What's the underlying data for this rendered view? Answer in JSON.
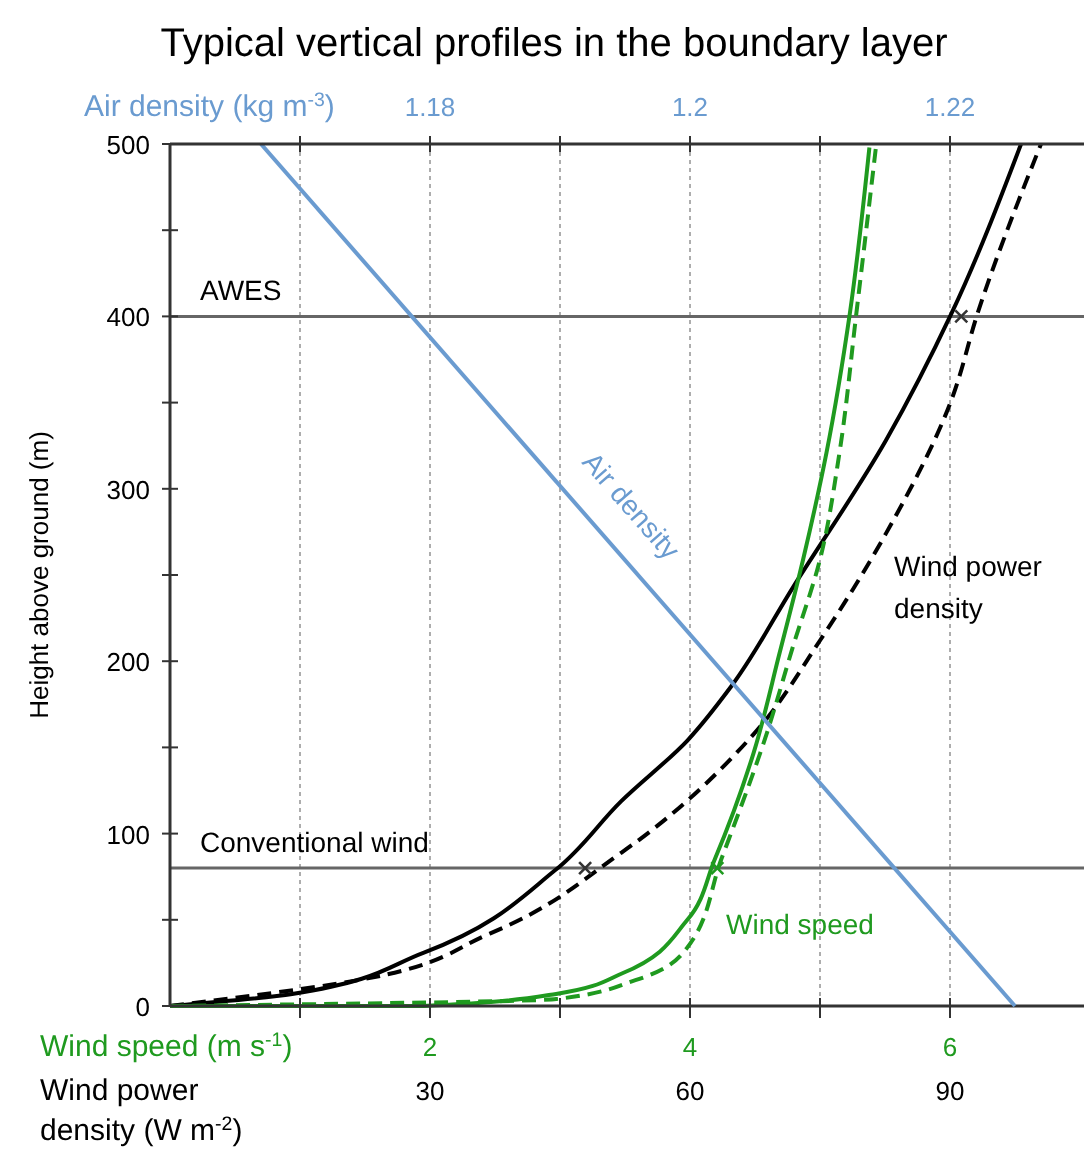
{
  "chart_data": [
    {
      "type": "line",
      "title": "Typical vertical profiles in the boundary layer",
      "xlabel": "Wind speed (m s$^{-1}$)",
      "x2label": "Wind power density (W m$^{-2}$)",
      "ylabel": "Height above ground (m)",
      "xlim": [
        0,
        7
      ],
      "xticks": [
        {
          "value": 1,
          "label": null
        },
        2,
        {
          "value": 3,
          "label": null
        },
        4,
        {
          "value": 5,
          "label": null
        },
        6
      ],
      "x2lim": [
        0,
        105
      ],
      "x2ticks": [
        30,
        60,
        90
      ],
      "ylim": [
        0,
        500
      ],
      "yticks": [
        0,
        {
          "value": 50,
          "label": null
        },
        100,
        {
          "value": 150,
          "label": null
        },
        200,
        {
          "value": 250,
          "label": null
        },
        300,
        {
          "value": 350,
          "label": null
        },
        400,
        {
          "value": 450,
          "label": null
        },
        500
      ],
      "grid": "x",
      "marker": "none",
      "ref_lines": [
        {
          "axis": "y",
          "value": 400,
          "label": "AWES",
          "color": "#666666"
        },
        {
          "axis": "y",
          "value": 80,
          "label": "Conventional wind",
          "color": "#666666"
        }
      ],
      "series": [
        {
          "name": "Wind power density",
          "color": "#000000",
          "axis": "x2",
          "line_style": "solid",
          "x": [
            0,
            14.1,
            29.3,
            44.5,
            52.1,
            59.7,
            64.7,
            71.9,
            82.6,
            90.2,
            98.2
          ],
          "values": [
            0,
            7,
            31,
            79,
            119,
            154,
            185,
            243,
            328,
            402,
            500
          ]
        },
        {
          "color": "#000000",
          "axis": "x2",
          "line_style": "dashed",
          "x": [
            0,
            21.7,
            36.9,
            52.1,
            67.4,
            75,
            82.6,
            90.2,
            93.2,
            100.5
          ],
          "values": [
            0,
            15,
            42,
            89,
            158,
            212,
            274,
            352,
            402,
            500
          ]
        },
        {
          "name": "Wind speed",
          "color": "#1f9a1f",
          "line_style": "solid",
          "x": [
            0,
            1.95,
            2.97,
            3.48,
            3.98,
            4.19,
            4.49,
            4.69,
            4.87,
            5.05,
            5.23,
            5.38
          ],
          "values": [
            0,
            0,
            7,
            19,
            50,
            85,
            147,
            205,
            259,
            321,
            402,
            498
          ]
        },
        {
          "color": "#1f9a1f",
          "line_style": "dashed",
          "x": [
            0,
            2.97,
            3.58,
            3.98,
            4.24,
            4.59,
            4.79,
            5.0,
            5.15,
            5.28,
            5.43
          ],
          "values": [
            0,
            4,
            15,
            34,
            85,
            158,
            208,
            259,
            321,
            402,
            498
          ]
        },
        {
          "type": "scatter",
          "color": "#333333",
          "axis": "x2",
          "marker": "cross",
          "x": [
            47.9,
            91.3
          ],
          "values": [
            80,
            400
          ]
        },
        {
          "type": "scatter",
          "color": "#1f9a1f",
          "marker": "cross",
          "x": [
            4.21
          ],
          "values": [
            80
          ]
        }
      ]
    },
    {
      "type": "line",
      "xlabel": "Air density (kg m$^{-3}$)",
      "xlim": [
        1.16,
        1.23
      ],
      "xticks": [
        {
          "value": 1.17,
          "label": null
        },
        1.18,
        {
          "value": 1.19,
          "label": null
        },
        1.2,
        {
          "value": 1.21,
          "label": null
        },
        1.22
      ],
      "ylim": [
        0,
        500
      ],
      "tick_labels": "x",
      "series": [
        {
          "name": "Air density",
          "color": "#6a9bd0",
          "x": [
            1.167,
            1.225
          ],
          "values": [
            500,
            0
          ]
        }
      ]
    }
  ]
}
